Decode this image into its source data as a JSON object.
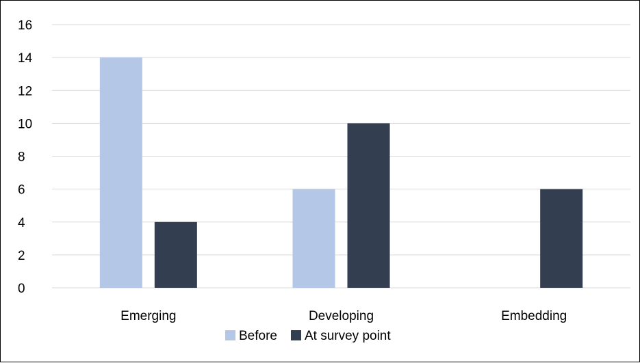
{
  "chart_data": {
    "type": "bar",
    "categories": [
      "Emerging",
      "Developing",
      "Embedding"
    ],
    "series": [
      {
        "name": "Before",
        "values": [
          14,
          6,
          0
        ],
        "color": "#b4c7e7"
      },
      {
        "name": "At survey point",
        "values": [
          4,
          10,
          6
        ],
        "color": "#333f50"
      }
    ],
    "ylim": [
      0,
      16
    ],
    "yticks": [
      0,
      2,
      4,
      6,
      8,
      10,
      12,
      14,
      16
    ],
    "grid": true,
    "legend_position": "bottom",
    "gridline_color": "#d9d9d9"
  }
}
